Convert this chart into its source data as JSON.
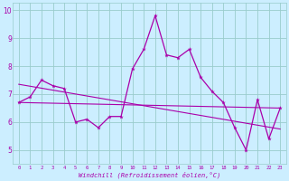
{
  "xlabel": "Windchill (Refroidissement éolien,°C)",
  "bg_color": "#cceeff",
  "line_color": "#aa00aa",
  "grid_color": "#99cccc",
  "x_values": [
    0,
    1,
    2,
    3,
    4,
    5,
    6,
    7,
    8,
    9,
    10,
    11,
    12,
    13,
    14,
    15,
    16,
    17,
    18,
    19,
    20,
    21,
    22,
    23
  ],
  "series1": [
    6.7,
    6.9,
    7.5,
    7.3,
    7.2,
    6.0,
    6.1,
    5.8,
    6.2,
    6.2,
    7.9,
    8.6,
    9.8,
    8.4,
    8.3,
    8.6,
    7.6,
    7.1,
    6.7,
    5.8,
    5.0,
    6.8,
    5.4,
    6.5
  ],
  "trend1": [
    6.7,
    6.5
  ],
  "trend2": [
    7.35,
    5.75
  ],
  "ylim_min": 4.5,
  "ylim_max": 10.25,
  "xlim_min": -0.5,
  "xlim_max": 23.5,
  "yticks": [
    5,
    6,
    7,
    8,
    9,
    10
  ],
  "xticks": [
    0,
    1,
    2,
    3,
    4,
    5,
    6,
    7,
    8,
    9,
    10,
    11,
    12,
    13,
    14,
    15,
    16,
    17,
    18,
    19,
    20,
    21,
    22,
    23
  ]
}
